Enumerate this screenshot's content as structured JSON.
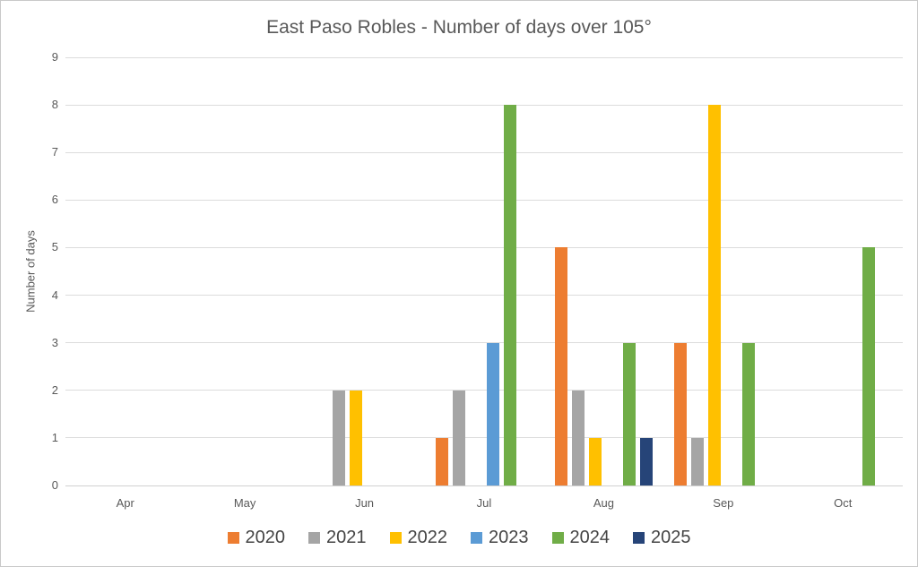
{
  "chart_data": {
    "type": "bar",
    "title": "East Paso Robles - Number of days over 105°",
    "xlabel": "",
    "ylabel": "Number of days",
    "categories": [
      "Apr",
      "May",
      "Jun",
      "Jul",
      "Aug",
      "Sep",
      "Oct"
    ],
    "series": [
      {
        "name": "2020",
        "color": "#ED7D31",
        "values": [
          0,
          0,
          0,
          1,
          5,
          3,
          0
        ]
      },
      {
        "name": "2021",
        "color": "#A5A5A5",
        "values": [
          0,
          0,
          2,
          2,
          2,
          1,
          0
        ]
      },
      {
        "name": "2022",
        "color": "#FFC000",
        "values": [
          0,
          0,
          2,
          0,
          1,
          8,
          0
        ]
      },
      {
        "name": "2023",
        "color": "#5B9BD5",
        "values": [
          0,
          0,
          0,
          3,
          0,
          0,
          0
        ]
      },
      {
        "name": "2024",
        "color": "#70AD47",
        "values": [
          0,
          0,
          0,
          8,
          3,
          3,
          5
        ]
      },
      {
        "name": "2025",
        "color": "#264478",
        "values": [
          0,
          0,
          0,
          0,
          1,
          0,
          0
        ]
      }
    ],
    "ylim": [
      0,
      9
    ],
    "yticks": [
      0,
      1,
      2,
      3,
      4,
      5,
      6,
      7,
      8,
      9
    ],
    "grid": true,
    "legend_position": "bottom"
  },
  "colors": {
    "text": "#595959",
    "legend_text": "#444444",
    "gridline": "#DCDCDC",
    "axis_line": "#D0D0D0",
    "background": "#FFFFFF",
    "border": "#C9C9C9"
  }
}
